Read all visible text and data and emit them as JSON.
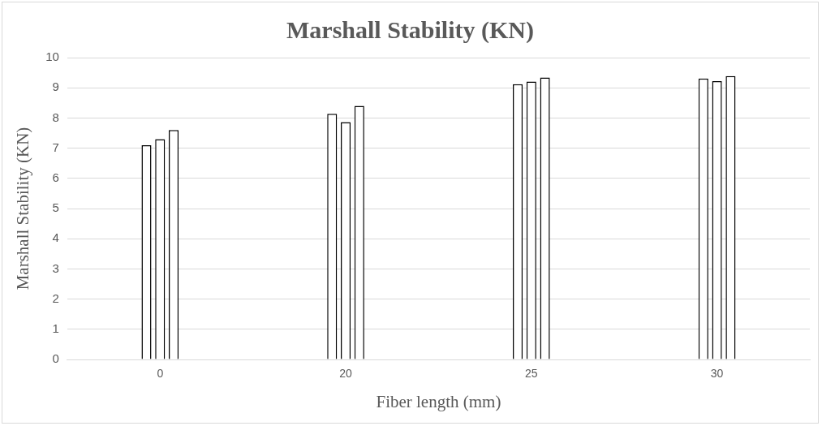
{
  "chart_data": {
    "type": "bar",
    "title": "Marshall Stability (KN)",
    "xlabel": "Fiber length (mm)",
    "ylabel": "Marshall Stability (KN)",
    "categories": [
      "0",
      "20",
      "25",
      "30"
    ],
    "series": [
      {
        "color": "#ffffff",
        "values": [
          7.1,
          8.14,
          9.12,
          9.31
        ]
      },
      {
        "color": "#ffffff",
        "values": [
          7.3,
          7.86,
          9.21,
          9.22
        ]
      },
      {
        "color": "#ffffff",
        "values": [
          7.6,
          8.4,
          9.34,
          9.39
        ]
      }
    ],
    "ylim": [
      0,
      10
    ],
    "yticks": [
      0,
      1,
      2,
      3,
      4,
      5,
      6,
      7,
      8,
      9,
      10
    ],
    "grid": "y",
    "legend": false
  }
}
